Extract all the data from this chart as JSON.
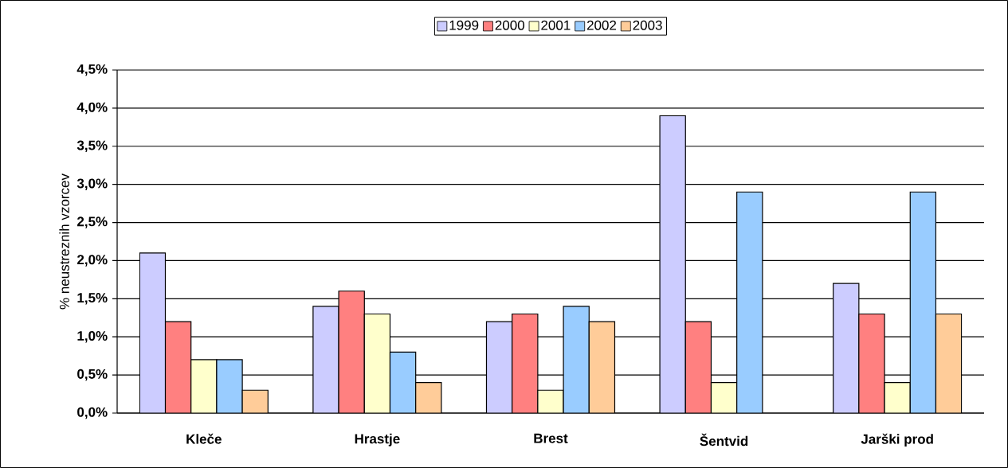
{
  "chart_data": {
    "type": "bar",
    "ylabel": "% neustreznih vzorcev",
    "categories": [
      "Kleče",
      "Hrastje",
      "Brest",
      "Šentvid",
      "Jarški prod"
    ],
    "series": [
      {
        "name": "1999",
        "color": "#ccccff",
        "values": [
          2.1,
          1.4,
          1.2,
          3.9,
          1.7
        ]
      },
      {
        "name": "2000",
        "color": "#ff8080",
        "values": [
          1.2,
          1.6,
          1.3,
          1.2,
          1.3
        ]
      },
      {
        "name": "2001",
        "color": "#ffffcc",
        "values": [
          0.7,
          1.3,
          0.3,
          0.4,
          0.4
        ]
      },
      {
        "name": "2002",
        "color": "#99ccff",
        "values": [
          0.7,
          0.8,
          1.4,
          2.9,
          2.9
        ]
      },
      {
        "name": "2003",
        "color": "#ffcc99",
        "values": [
          0.3,
          0.4,
          1.2,
          null,
          1.3
        ]
      }
    ],
    "ylim": [
      0,
      4.5
    ],
    "yticks": [
      {
        "value": 0,
        "label": "0,0%"
      },
      {
        "value": 0.5,
        "label": "0,5%"
      },
      {
        "value": 1,
        "label": "1,0%"
      },
      {
        "value": 1.5,
        "label": "1,5%"
      },
      {
        "value": 2,
        "label": "2,0%"
      },
      {
        "value": 2.5,
        "label": "2,5%"
      },
      {
        "value": 3,
        "label": "3,0%"
      },
      {
        "value": 3.5,
        "label": "3,5%"
      },
      {
        "value": 4,
        "label": "4,0%"
      },
      {
        "value": 4.5,
        "label": "4,5%"
      }
    ],
    "grid": "y",
    "legend": "top"
  }
}
